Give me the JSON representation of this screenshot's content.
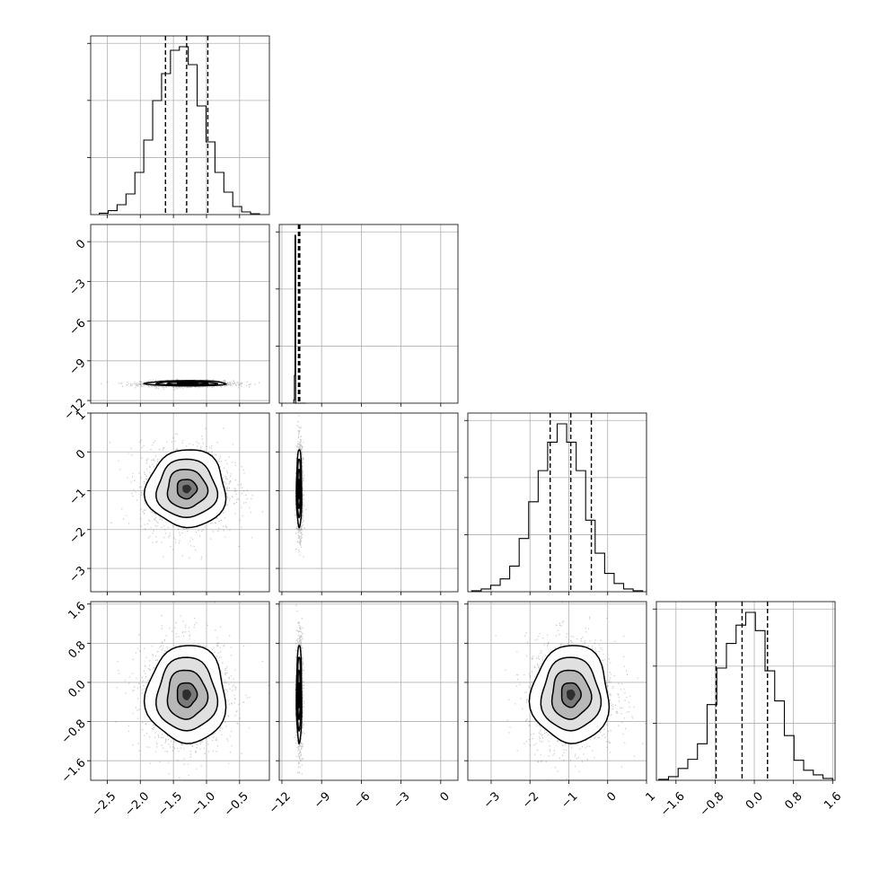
{
  "chart_data": {
    "type": "corner",
    "colors": {
      "ink": "#000000",
      "grid": "#b0b0b0",
      "background": "#ffffff"
    },
    "variables": [
      {
        "range": [
          -2.75,
          -0.05
        ],
        "ticks": [
          -2.5,
          -2.0,
          -1.5,
          -1.0,
          -0.5
        ],
        "tick_labels": [
          "−2.5",
          "−2.0",
          "−1.5",
          "−1.0",
          "−0.5"
        ],
        "mean": -1.3,
        "std": 0.3,
        "quantiles": [
          -1.62,
          -1.3,
          -0.98
        ]
      },
      {
        "range": [
          -12.2,
          1.3
        ],
        "ticks": [
          -12,
          -9,
          -6,
          -3,
          0
        ],
        "tick_labels": [
          "−12",
          "−9",
          "−6",
          "−3",
          "0"
        ],
        "mean": -10.7,
        "std": 0.1,
        "quantiles": [
          -10.75,
          -10.7,
          -10.65
        ]
      },
      {
        "range": [
          -3.6,
          1.0
        ],
        "ticks": [
          -3,
          -2,
          -1,
          0,
          1
        ],
        "tick_labels": [
          "−3",
          "−2",
          "−1",
          "0",
          "1"
        ],
        "mean": -0.95,
        "std": 0.5,
        "quantiles": [
          -1.48,
          -0.95,
          -0.42
        ]
      },
      {
        "range": [
          -2.0,
          1.65
        ],
        "ticks": [
          -1.6,
          -0.8,
          0.0,
          0.8,
          1.6
        ],
        "tick_labels": [
          "−1.6",
          "−0.8",
          "0.0",
          "0.8",
          "1.6"
        ],
        "mean": -0.25,
        "std": 0.5,
        "quantiles": [
          -0.78,
          -0.25,
          0.27
        ]
      }
    ],
    "histograms": [
      {
        "variable": 0,
        "counts": [
          0.8,
          2.2,
          5.5,
          11.5,
          23.5,
          41.5,
          63.5,
          78.5,
          91.5,
          93.5,
          83.5,
          60.5,
          40.5,
          23.5,
          12.5,
          4.5,
          1.5,
          0.5
        ]
      },
      {
        "variable": 1,
        "counts": [
          2.0,
          16.5,
          100.0,
          0,
          0,
          0,
          0,
          0,
          0,
          0,
          0,
          0,
          0,
          0,
          0,
          0,
          0,
          0,
          0,
          0
        ]
      },
      {
        "variable": 2,
        "counts": [
          0.5,
          1.5,
          3.5,
          7.0,
          14.0,
          29.0,
          49.0,
          66.0,
          81.5,
          91.5,
          81.5,
          66.0,
          39.0,
          21.0,
          10.0,
          4.5,
          1.5,
          0.5
        ]
      },
      {
        "variable": 3,
        "counts": [
          0.5,
          2.0,
          6.5,
          11.5,
          20.0,
          41.5,
          61.5,
          75.0,
          85.0,
          92.0,
          82.0,
          60.0,
          43.5,
          24.5,
          11.0,
          5.5,
          3.0,
          1.0
        ]
      }
    ],
    "joint_panels": [
      {
        "x_variable": 0,
        "y_variable": 1,
        "mean": [
          -1.3,
          -10.7
        ],
        "std": [
          0.3,
          0.1
        ]
      },
      {
        "x_variable": 0,
        "y_variable": 2,
        "mean": [
          -1.3,
          -0.95
        ],
        "std": [
          0.3,
          0.5
        ]
      },
      {
        "x_variable": 1,
        "y_variable": 2,
        "mean": [
          -10.7,
          -0.95
        ],
        "std": [
          0.1,
          0.5
        ]
      },
      {
        "x_variable": 0,
        "y_variable": 3,
        "mean": [
          -1.3,
          -0.25
        ],
        "std": [
          0.3,
          0.5
        ]
      },
      {
        "x_variable": 1,
        "y_variable": 3,
        "mean": [
          -10.7,
          -0.25
        ],
        "std": [
          0.1,
          0.5
        ]
      },
      {
        "x_variable": 2,
        "y_variable": 3,
        "mean": [
          -0.95,
          -0.25
        ],
        "std": [
          0.5,
          0.5
        ]
      }
    ],
    "contour_levels_sigma": [
      0.5,
      1.0,
      1.5,
      2.0
    ],
    "grid": true,
    "xlabel": "",
    "ylabel": ""
  }
}
